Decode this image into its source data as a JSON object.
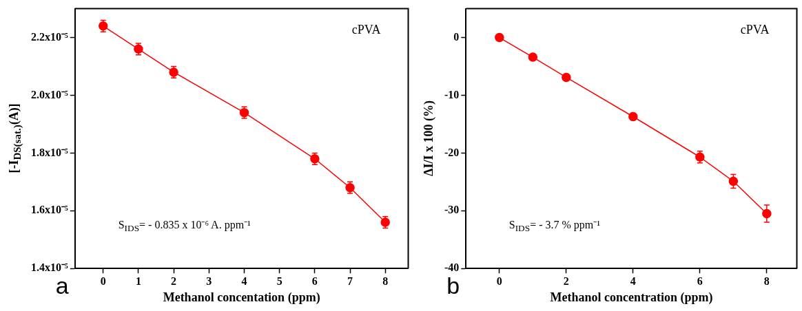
{
  "chart_data": [
    {
      "type": "line",
      "xlabel": "Methanol concentation (ppm)",
      "ylabel": "[-I$_{DS(sat.)}$(A)]",
      "x": [
        0,
        1,
        2,
        4,
        6,
        7,
        8
      ],
      "series": [
        {
          "color": "#ff0000",
          "values": [
            2.24e-05,
            2.16e-05,
            2.08e-05,
            1.94e-05,
            1.78e-05,
            1.68e-05,
            1.56e-05
          ],
          "errors": [
            2e-07,
            2e-07,
            2e-07,
            2e-07,
            2e-07,
            2e-07,
            2e-07
          ]
        }
      ],
      "xlim": [
        -0.8,
        8.65
      ],
      "xticks": [
        0,
        1,
        2,
        3,
        4,
        5,
        6,
        7,
        8
      ],
      "ylim": [
        1.4e-05,
        2.3e-05
      ],
      "yticks": [
        {
          "value": 1.4e-05,
          "label": "1.4x10⁻⁵"
        },
        {
          "value": 1.6e-05,
          "label": "1.6x10⁻⁵"
        },
        {
          "value": 1.8e-05,
          "label": "1.8x10⁻⁵"
        },
        {
          "value": 2e-05,
          "label": "2.0x10⁻⁵"
        },
        {
          "value": 2.2e-05,
          "label": "2.2x10⁻⁵"
        }
      ],
      "annotations": [
        "cPVA",
        "S$_{IDS}$= - 0.835 x 10⁻⁶ A. ppm⁻¹",
        "a"
      ],
      "marker": "circle",
      "line_style": "solid",
      "grid": false,
      "legend": false
    },
    {
      "type": "line",
      "xlabel": "Methanol concentration (ppm)",
      "ylabel": "ΔI/I x 100 (%)",
      "x": [
        0,
        1,
        2,
        4,
        6,
        7,
        8
      ],
      "series": [
        {
          "color": "#ff0000",
          "values": [
            0,
            -3.4,
            -6.9,
            -13.7,
            -20.7,
            -24.9,
            -30.5
          ],
          "errors": [
            null,
            null,
            null,
            0.6,
            1.0,
            1.2,
            1.5
          ]
        }
      ],
      "xlim": [
        -1,
        8.9
      ],
      "xticks": [
        0,
        2,
        4,
        6,
        8
      ],
      "ylim": [
        -40,
        5
      ],
      "yticks": [
        -40,
        -30,
        -20,
        -10,
        0
      ],
      "annotations": [
        "cPVA",
        "S$_{IDS}$= - 3.7 %  ppm⁻¹",
        "b"
      ],
      "marker": "circle",
      "line_style": "solid",
      "grid": false,
      "legend": false
    }
  ]
}
